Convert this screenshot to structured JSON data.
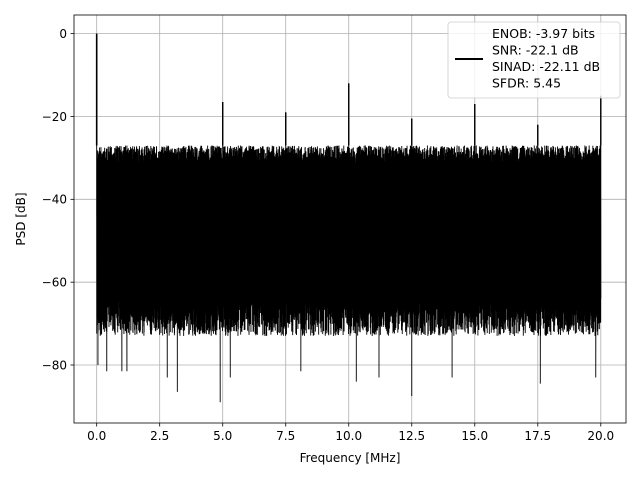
{
  "chart_data": {
    "type": "line",
    "title": "",
    "xlabel": "Frequency [MHz]",
    "ylabel": "PSD [dB]",
    "xlim": [
      -0.9,
      21.0
    ],
    "ylim": [
      -94.0,
      4.5
    ],
    "xticks": [
      0.0,
      2.5,
      5.0,
      7.5,
      10.0,
      12.5,
      15.0,
      17.5,
      20.0
    ],
    "xtick_labels": [
      "0.0",
      "2.5",
      "5.0",
      "7.5",
      "10.0",
      "12.5",
      "15.0",
      "17.5",
      "20.0"
    ],
    "yticks": [
      0,
      -20,
      -40,
      -60,
      -80
    ],
    "ytick_labels": [
      "0",
      "−20",
      "−40",
      "−60",
      "−80"
    ],
    "grid": true,
    "legend_position": "top-right",
    "series": [
      {
        "name": "",
        "color": "#000000",
        "noise_ceiling_db": -27,
        "noise_floor_db": -68,
        "fundamental": {
          "x": 0.0,
          "y": 0
        },
        "spurs": [
          {
            "x": 5.0,
            "y": -16.5
          },
          {
            "x": 7.5,
            "y": -19
          },
          {
            "x": 10.0,
            "y": -12
          },
          {
            "x": 12.5,
            "y": -20.5
          },
          {
            "x": 15.0,
            "y": -17
          },
          {
            "x": 17.5,
            "y": -22
          },
          {
            "x": 20.0,
            "y": -15
          }
        ],
        "deep_dips": [
          {
            "x": 0.05,
            "y": -80
          },
          {
            "x": 0.4,
            "y": -81.5
          },
          {
            "x": 1.0,
            "y": -81.5
          },
          {
            "x": 1.2,
            "y": -81.5
          },
          {
            "x": 2.8,
            "y": -83
          },
          {
            "x": 3.2,
            "y": -86.5
          },
          {
            "x": 4.9,
            "y": -89
          },
          {
            "x": 5.3,
            "y": -83
          },
          {
            "x": 8.1,
            "y": -81.5
          },
          {
            "x": 10.3,
            "y": -84
          },
          {
            "x": 11.2,
            "y": -83
          },
          {
            "x": 12.5,
            "y": -87.5
          },
          {
            "x": 14.1,
            "y": -83
          },
          {
            "x": 17.6,
            "y": -84.5
          },
          {
            "x": 19.8,
            "y": -83
          }
        ]
      }
    ],
    "legend_lines": [
      "ENOB: -3.97 bits",
      "SNR: -22.1 dB",
      "SINAD: -22.11 dB",
      "SFDR: 5.45"
    ]
  }
}
